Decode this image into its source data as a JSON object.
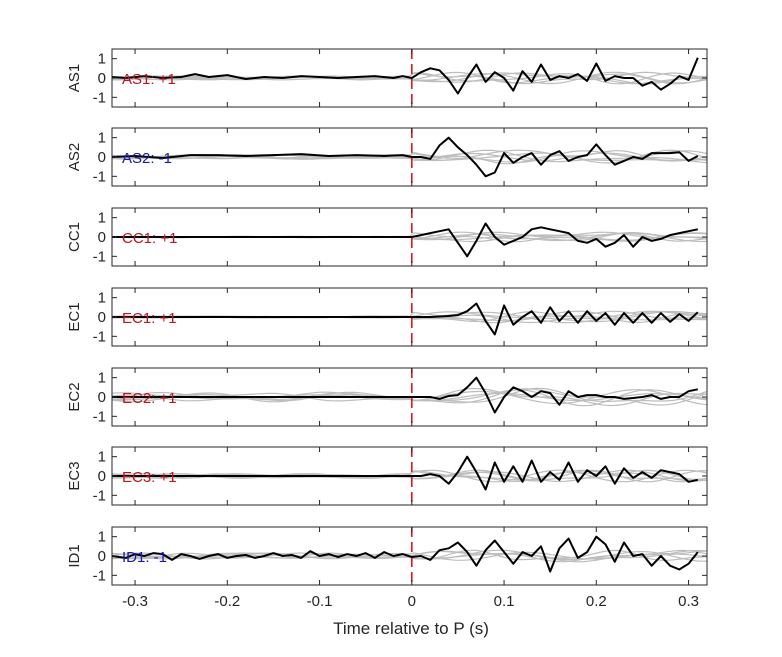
{
  "chart_data": {
    "type": "line",
    "xlabel": "Time relative to P (s)",
    "xlim": [
      -0.325,
      0.32
    ],
    "ylim": [
      -1.5,
      1.5
    ],
    "x_ticks": [
      -0.3,
      -0.2,
      -0.1,
      0,
      0.1,
      0.2,
      0.3
    ],
    "x_tick_labels": [
      "-0.3",
      "-0.2",
      "-0.1",
      "0",
      "0.1",
      "0.2",
      "0.3"
    ],
    "y_ticks": [
      1,
      0,
      -1
    ],
    "y_tick_labels": [
      "1",
      "0",
      "-1"
    ],
    "marker_time": 0,
    "colors": {
      "main_trace": "#000000",
      "background_traces": "#bdbdbd",
      "marker": "#e8141b",
      "positive_label": "#c0141c",
      "negative_label": "#1a1aa8",
      "axes": "#262626"
    },
    "panels": [
      {
        "ylabel": "AS1",
        "label": "AS1: +1",
        "polarity": 1,
        "main_x": [
          -0.325,
          -0.31,
          -0.29,
          -0.27,
          -0.25,
          -0.235,
          -0.22,
          -0.2,
          -0.18,
          -0.16,
          -0.14,
          -0.12,
          -0.1,
          -0.08,
          -0.06,
          -0.04,
          -0.02,
          -0.01,
          0,
          0.01,
          0.02,
          0.03,
          0.04,
          0.05,
          0.06,
          0.07,
          0.08,
          0.09,
          0.1,
          0.11,
          0.12,
          0.13,
          0.14,
          0.15,
          0.16,
          0.17,
          0.18,
          0.19,
          0.2,
          0.21,
          0.22,
          0.23,
          0.24,
          0.25,
          0.26,
          0.27,
          0.28,
          0.29,
          0.3,
          0.31
        ],
        "main_y": [
          0.05,
          0.0,
          0.1,
          0.0,
          0.05,
          0.2,
          0.05,
          0.15,
          -0.05,
          0.05,
          0.0,
          0.1,
          0.05,
          0.0,
          0.05,
          0.1,
          0.0,
          0.1,
          0.0,
          0.3,
          0.5,
          0.4,
          -0.1,
          -0.8,
          0.0,
          0.7,
          -0.2,
          0.3,
          0.0,
          -0.65,
          0.35,
          -0.2,
          0.7,
          -0.1,
          0.1,
          0.0,
          0.2,
          -0.15,
          0.75,
          -0.15,
          0.1,
          0.0,
          0.0,
          -0.4,
          -0.2,
          -0.6,
          -0.3,
          0.1,
          -0.1,
          1.05
        ],
        "bg_amp_pre": 0.1,
        "bg_amp_post": 0.3
      },
      {
        "ylabel": "AS2",
        "label": "AS2: -1",
        "polarity": -1,
        "main_x": [
          -0.325,
          -0.3,
          -0.27,
          -0.24,
          -0.21,
          -0.18,
          -0.15,
          -0.12,
          -0.09,
          -0.06,
          -0.03,
          -0.01,
          0,
          0.01,
          0.02,
          0.03,
          0.04,
          0.05,
          0.06,
          0.07,
          0.08,
          0.09,
          0.1,
          0.11,
          0.12,
          0.13,
          0.14,
          0.15,
          0.16,
          0.17,
          0.18,
          0.19,
          0.2,
          0.21,
          0.22,
          0.23,
          0.24,
          0.25,
          0.26,
          0.27,
          0.28,
          0.29,
          0.3,
          0.31
        ],
        "main_y": [
          0.0,
          0.05,
          -0.05,
          0.1,
          0.1,
          0.05,
          0.1,
          0.15,
          0.05,
          0.1,
          0.05,
          0.1,
          0.0,
          0.0,
          -0.1,
          0.6,
          1.0,
          0.5,
          0.1,
          -0.4,
          -1.0,
          -0.8,
          0.2,
          -0.3,
          0.0,
          0.2,
          -0.4,
          0.1,
          0.3,
          -0.2,
          0.0,
          0.1,
          0.65,
          0.1,
          -0.4,
          -0.2,
          0.0,
          -0.1,
          0.2,
          0.2,
          0.2,
          0.25,
          -0.2,
          0.05
        ],
        "bg_amp_pre": 0.12,
        "bg_amp_post": 0.35
      },
      {
        "ylabel": "CC1",
        "label": "CC1: +1",
        "polarity": 1,
        "main_x": [
          -0.325,
          -0.2,
          -0.1,
          -0.02,
          0,
          0.01,
          0.02,
          0.03,
          0.04,
          0.05,
          0.06,
          0.07,
          0.08,
          0.09,
          0.1,
          0.11,
          0.12,
          0.13,
          0.14,
          0.15,
          0.16,
          0.17,
          0.18,
          0.19,
          0.2,
          0.21,
          0.22,
          0.23,
          0.24,
          0.25,
          0.26,
          0.27,
          0.28,
          0.29,
          0.3,
          0.31
        ],
        "main_y": [
          0.0,
          0.0,
          0.0,
          0.0,
          0.0,
          0.1,
          0.2,
          0.3,
          0.4,
          -0.3,
          -1.0,
          -0.2,
          0.7,
          0.0,
          -0.4,
          -0.2,
          0.0,
          0.4,
          0.5,
          0.4,
          0.3,
          0.2,
          -0.2,
          -0.3,
          -0.1,
          -0.5,
          -0.3,
          0.1,
          -0.5,
          0.0,
          -0.2,
          -0.1,
          0.1,
          0.2,
          0.3,
          0.4
        ],
        "bg_amp_pre": 0.03,
        "bg_amp_post": 0.25
      },
      {
        "ylabel": "EC1",
        "label": "EC1: +1",
        "polarity": 1,
        "main_x": [
          -0.325,
          -0.2,
          -0.1,
          -0.02,
          0,
          0.02,
          0.04,
          0.05,
          0.06,
          0.07,
          0.08,
          0.09,
          0.1,
          0.11,
          0.12,
          0.13,
          0.14,
          0.15,
          0.16,
          0.17,
          0.18,
          0.19,
          0.2,
          0.21,
          0.22,
          0.23,
          0.24,
          0.25,
          0.26,
          0.27,
          0.28,
          0.29,
          0.3,
          0.31
        ],
        "main_y": [
          0.0,
          0.0,
          0.0,
          0.0,
          0.0,
          0.0,
          0.05,
          0.1,
          0.3,
          0.7,
          -0.2,
          -0.9,
          0.6,
          -0.4,
          0.0,
          0.3,
          -0.3,
          0.5,
          -0.2,
          0.3,
          -0.3,
          0.3,
          -0.2,
          0.2,
          -0.4,
          0.2,
          -0.3,
          0.2,
          -0.3,
          0.2,
          -0.25,
          0.15,
          -0.2,
          0.25
        ],
        "bg_amp_pre": 0.05,
        "bg_amp_post": 0.3
      },
      {
        "ylabel": "EC2",
        "label": "EC2: +1",
        "polarity": 1,
        "main_x": [
          -0.325,
          -0.2,
          -0.1,
          -0.02,
          0,
          0.02,
          0.03,
          0.04,
          0.05,
          0.06,
          0.07,
          0.08,
          0.09,
          0.1,
          0.11,
          0.12,
          0.13,
          0.14,
          0.15,
          0.16,
          0.17,
          0.18,
          0.19,
          0.2,
          0.21,
          0.22,
          0.23,
          0.24,
          0.25,
          0.26,
          0.27,
          0.28,
          0.29,
          0.3,
          0.31
        ],
        "main_y": [
          0.0,
          0.0,
          0.0,
          0.0,
          0.0,
          0.0,
          -0.1,
          0.05,
          0.1,
          0.5,
          1.0,
          0.2,
          -0.8,
          0.0,
          0.5,
          0.3,
          0.0,
          0.3,
          0.2,
          -0.4,
          0.3,
          0.0,
          0.1,
          0.1,
          0.0,
          0.0,
          -0.1,
          -0.05,
          0.0,
          0.1,
          -0.1,
          0.0,
          0.0,
          0.3,
          0.4
        ],
        "bg_amp_pre": 0.25,
        "bg_amp_post": 0.45
      },
      {
        "ylabel": "EC3",
        "label": "EC3: +1",
        "polarity": 1,
        "main_x": [
          -0.325,
          -0.2,
          -0.1,
          -0.02,
          0,
          0.01,
          0.02,
          0.03,
          0.04,
          0.05,
          0.06,
          0.07,
          0.08,
          0.09,
          0.1,
          0.11,
          0.12,
          0.13,
          0.14,
          0.15,
          0.16,
          0.17,
          0.18,
          0.19,
          0.2,
          0.21,
          0.22,
          0.23,
          0.24,
          0.25,
          0.26,
          0.27,
          0.28,
          0.29,
          0.3,
          0.31
        ],
        "main_y": [
          0.0,
          0.0,
          0.0,
          0.0,
          0.0,
          0.0,
          0.1,
          0.0,
          -0.4,
          0.2,
          1.0,
          0.2,
          -0.7,
          0.7,
          -0.3,
          0.5,
          -0.3,
          0.8,
          -0.3,
          0.2,
          -0.2,
          0.7,
          -0.3,
          0.3,
          0.0,
          0.5,
          -0.4,
          0.4,
          -0.1,
          0.2,
          -0.1,
          0.3,
          0.2,
          0.1,
          -0.3,
          -0.2
        ],
        "bg_amp_pre": 0.12,
        "bg_amp_post": 0.3
      },
      {
        "ylabel": "ID1",
        "label": "ID1: -1",
        "polarity": -1,
        "main_x": [
          -0.325,
          -0.31,
          -0.3,
          -0.29,
          -0.28,
          -0.27,
          -0.26,
          -0.25,
          -0.24,
          -0.23,
          -0.22,
          -0.21,
          -0.2,
          -0.19,
          -0.18,
          -0.17,
          -0.16,
          -0.15,
          -0.14,
          -0.13,
          -0.12,
          -0.11,
          -0.1,
          -0.09,
          -0.08,
          -0.07,
          -0.06,
          -0.05,
          -0.04,
          -0.03,
          -0.02,
          -0.01,
          0,
          0.01,
          0.02,
          0.03,
          0.04,
          0.05,
          0.06,
          0.07,
          0.08,
          0.09,
          0.1,
          0.11,
          0.12,
          0.13,
          0.14,
          0.15,
          0.16,
          0.17,
          0.18,
          0.19,
          0.2,
          0.21,
          0.22,
          0.23,
          0.24,
          0.25,
          0.26,
          0.27,
          0.28,
          0.29,
          0.3,
          0.31
        ],
        "main_y": [
          0.0,
          -0.1,
          0.1,
          0.0,
          0.15,
          0.1,
          -0.2,
          0.1,
          0.0,
          -0.15,
          0.0,
          0.1,
          -0.1,
          0.0,
          0.05,
          -0.1,
          0.0,
          0.15,
          0.0,
          0.05,
          -0.1,
          0.25,
          0.0,
          0.1,
          -0.05,
          0.1,
          0.0,
          0.15,
          -0.1,
          0.2,
          0.0,
          0.1,
          -0.05,
          0.0,
          -0.2,
          0.3,
          0.4,
          0.7,
          0.2,
          -0.5,
          0.3,
          0.8,
          0.2,
          -0.4,
          0.2,
          0.0,
          0.5,
          -0.8,
          0.4,
          0.9,
          -0.1,
          0.2,
          1.0,
          0.6,
          -0.3,
          0.7,
          0.0,
          0.1,
          -0.5,
          0.0,
          -0.5,
          -0.7,
          -0.4,
          0.2
        ],
        "bg_amp_pre": 0.15,
        "bg_amp_post": 0.3
      }
    ]
  }
}
